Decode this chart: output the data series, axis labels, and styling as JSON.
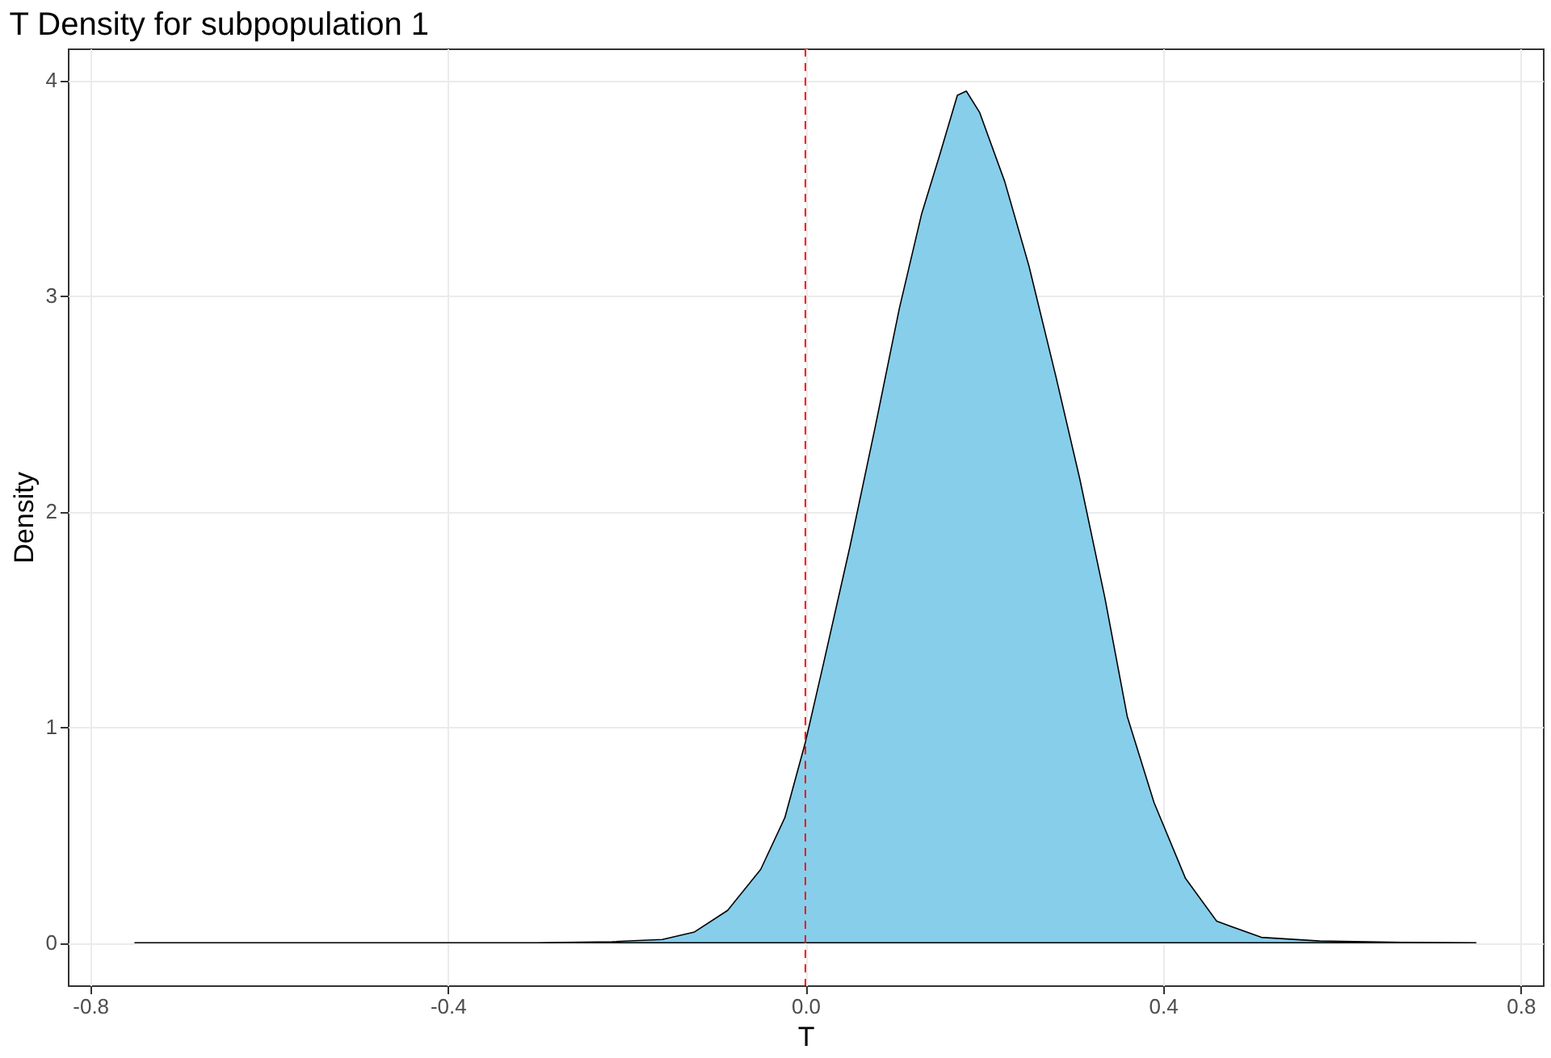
{
  "chart_data": {
    "type": "area",
    "title": "T Density for subpopulation 1",
    "xlabel": "T",
    "ylabel": "Density",
    "series": [
      {
        "color": "#87ceeb",
        "x": [
          -0.75,
          -0.5,
          -0.3,
          -0.216,
          -0.16,
          -0.124,
          -0.087,
          -0.05,
          -0.023,
          0.0,
          0.02,
          0.05,
          0.078,
          0.105,
          0.13,
          0.15,
          0.17,
          0.18,
          0.195,
          0.223,
          0.25,
          0.28,
          0.307,
          0.335,
          0.36,
          0.39,
          0.425,
          0.46,
          0.51,
          0.575,
          0.667,
          0.75
        ],
        "values": [
          0,
          0,
          0,
          0.005,
          0.015,
          0.05,
          0.15,
          0.34,
          0.58,
          0.93,
          1.29,
          1.84,
          2.39,
          2.94,
          3.38,
          3.65,
          3.93,
          3.95,
          3.85,
          3.53,
          3.14,
          2.63,
          2.15,
          1.6,
          1.05,
          0.65,
          0.3,
          0.1,
          0.025,
          0.008,
          0.002,
          0
        ]
      }
    ],
    "xlim": [
      -0.825,
      0.825
    ],
    "xticks": [
      -0.8,
      -0.4,
      {
        "value": 0,
        "label": "0.0"
      },
      0.4,
      0.8
    ],
    "ylim": [
      -0.1975,
      4.1475
    ],
    "yticks": [
      0,
      1,
      2,
      3,
      4
    ],
    "ref_lines": [
      {
        "axis": "x",
        "value": 0,
        "color": "#ff0000",
        "line_style": "dashed"
      }
    ],
    "grid": true
  }
}
